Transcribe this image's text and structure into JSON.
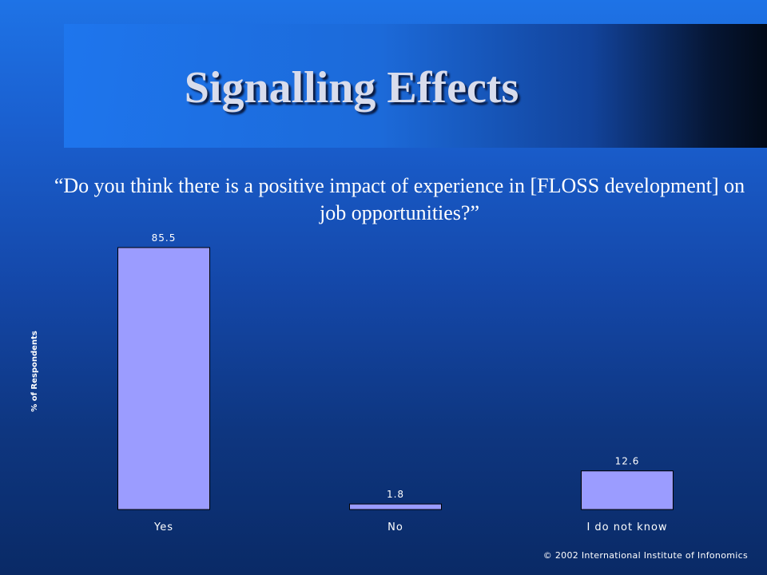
{
  "slide": {
    "title": "Signalling Effects",
    "question": "“Do you think there is a positive impact of experience in [FLOSS development] on job opportunities?”",
    "copyright": "© 2002 International Institute of Infonomics"
  },
  "chart_data": {
    "type": "bar",
    "categories": [
      "Yes",
      "No",
      "I do not know"
    ],
    "values": [
      85.5,
      1.8,
      12.6
    ],
    "value_labels": [
      "85.5",
      "1.8",
      "12.6"
    ],
    "ylabel": "% of Respondents",
    "ylim": [
      0,
      85.5
    ],
    "bar_color": "#9b9cff",
    "grid": false,
    "legend": "none"
  }
}
